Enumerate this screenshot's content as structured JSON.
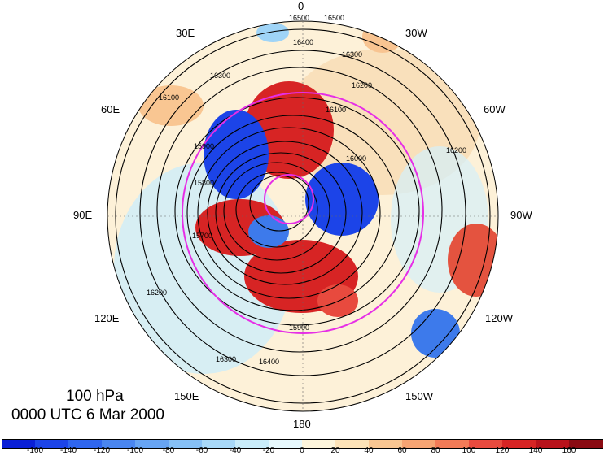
{
  "caption": {
    "level": "100 hPa",
    "time": "0000 UTC 6 Mar 2000"
  },
  "longitude_labels": {
    "top": "0",
    "top_left": "30E",
    "top_right": "30W",
    "upper_left": "60E",
    "upper_right": "60W",
    "left": "90E",
    "right": "90W",
    "lower_left": "120E",
    "lower_right": "120W",
    "bottom_left": "150E",
    "bottom_right": "150W",
    "bottom": "180"
  },
  "contour_labels": [
    "16500",
    "16500",
    "16400",
    "16300",
    "16200",
    "16100",
    "16000",
    "15900",
    "15800",
    "15700",
    "16200",
    "16300",
    "16400",
    "15900",
    "16100",
    "16300",
    "16200"
  ],
  "colorbar": {
    "ticks": [
      "-160",
      "-140",
      "-120",
      "-100",
      "-80",
      "-60",
      "-40",
      "-20",
      "0",
      "20",
      "40",
      "60",
      "80",
      "100",
      "120",
      "140",
      "160"
    ],
    "colors": [
      "#0a1fd6",
      "#1c44e8",
      "#2f66ee",
      "#4a86f0",
      "#67a4f3",
      "#86c0f6",
      "#a8d8f8",
      "#c9ecfa",
      "#e6f8fd",
      "#fdf5dc",
      "#fde3b8",
      "#f9c692",
      "#f6a473",
      "#f27b57",
      "#e84a3e",
      "#d72424",
      "#b8121b",
      "#8a0a12"
    ]
  },
  "overlay": {
    "circle_color": "#e62ee6",
    "coast_color": "#000000"
  }
}
